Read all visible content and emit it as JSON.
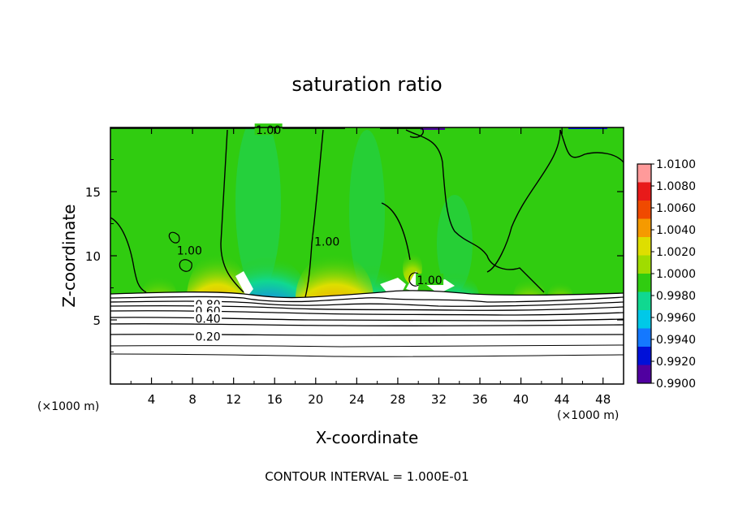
{
  "chart_data": {
    "type": "heatmap",
    "title": "saturation ratio",
    "xlabel": "X-coordinate",
    "ylabel": "Z-coordinate",
    "x_unit_label_left": "(×1000 m)",
    "x_unit_label_right": "(×1000 m)",
    "xlim": [
      0,
      50
    ],
    "ylim": [
      0,
      20
    ],
    "x_ticks": [
      4,
      8,
      12,
      16,
      20,
      24,
      28,
      32,
      36,
      40,
      44,
      48
    ],
    "y_ticks": [
      5,
      10,
      15
    ],
    "footer": "CONTOUR INTERVAL = 1.000E-01",
    "colorbar": {
      "levels": [
        "1.0100",
        "1.0080",
        "1.0060",
        "1.0040",
        "1.0020",
        "1.0000",
        "0.9980",
        "0.9960",
        "0.9940",
        "0.9920",
        "0.9900"
      ],
      "colors": [
        "#ff9a9a",
        "#e81a1a",
        "#f04a00",
        "#f59a00",
        "#dede00",
        "#a0dc00",
        "#30cc10",
        "#10d890",
        "#00c8e8",
        "#1478ff",
        "#0010d8",
        "#5000a0"
      ]
    },
    "contour_labels": [
      {
        "text": "1.00",
        "x": 15.4,
        "z": 19.8
      },
      {
        "text": "1.00",
        "x": 7.7,
        "z": 10.4
      },
      {
        "text": "1.00",
        "x": 21.1,
        "z": 11.1
      },
      {
        "text": "1.00",
        "x": 31.1,
        "z": 8.1
      },
      {
        "text": "0.80",
        "x": 9.5,
        "z": 6.2
      },
      {
        "text": "0.60",
        "x": 9.5,
        "z": 5.7
      },
      {
        "text": "0.40",
        "x": 9.5,
        "z": 5.1
      },
      {
        "text": "0.20",
        "x": 9.5,
        "z": 3.7
      }
    ]
  }
}
